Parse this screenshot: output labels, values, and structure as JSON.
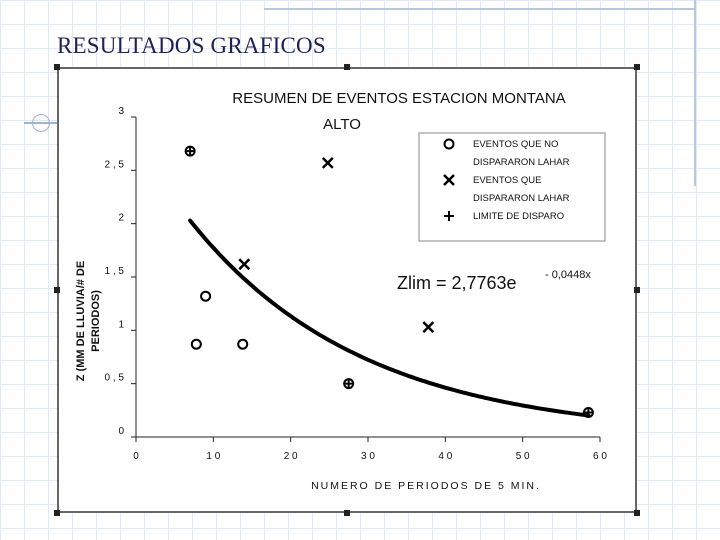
{
  "slide": {
    "title": "RESULTADOS GRAFICOS"
  },
  "chart_data": {
    "type": "scatter",
    "title_line1": "RESUMEN DE EVENTOS ESTACION MONTANA",
    "title_line2": "ALTO",
    "xlabel": "NUMERO DE PERIODOS DE 5 MIN.",
    "ylabel_line1": "Z (MM DE LLUVIA/# DE",
    "ylabel_line2": "PERIODOS)",
    "xlim": [
      0,
      60
    ],
    "ylim": [
      0,
      3
    ],
    "x_ticks": [
      0,
      10,
      20,
      30,
      40,
      50,
      60
    ],
    "x_tick_labels": [
      "0",
      "1 0",
      "2 0",
      "3 0",
      "4 0",
      "5 0",
      "6 0"
    ],
    "y_ticks": [
      0,
      0.5,
      1,
      1.5,
      2,
      2.5,
      3
    ],
    "y_tick_labels": [
      "0",
      "0 , 5",
      "1",
      "1 , 5",
      "2",
      "2 , 5",
      "3"
    ],
    "legend": {
      "placement": "top-right",
      "items": [
        "EVENTOS QUE NO",
        "DISPARARON LAHAR",
        "EVENTOS QUE",
        "DISPARARON LAHAR",
        "LIMITE DE DISPARO"
      ]
    },
    "series": [
      {
        "name": "EVENTOS QUE NO DISPARARON LAHAR",
        "marker": "circle",
        "points": [
          [
            7.8,
            0.87
          ],
          [
            9,
            1.32
          ],
          [
            13.8,
            0.87
          ],
          [
            7,
            2.68
          ],
          [
            27.5,
            0.5
          ],
          [
            58.5,
            0.23
          ]
        ]
      },
      {
        "name": "EVENTOS QUE DISPARARON LAHAR",
        "marker": "x",
        "points": [
          [
            14,
            1.62
          ],
          [
            24.8,
            2.57
          ],
          [
            37.8,
            1.03
          ]
        ]
      },
      {
        "name": "LIMITE DE DISPARO",
        "marker": "plus",
        "points": [
          [
            7,
            2.68
          ],
          [
            27.5,
            0.5
          ],
          [
            58.5,
            0.23
          ]
        ]
      }
    ],
    "curve": {
      "type": "exponential",
      "a": 2.7763,
      "b": -0.0448,
      "x_range": [
        7,
        58.5
      ],
      "equation_prefix": "Zlim = 2,7763e",
      "equation_exponent": "- 0,0448x"
    },
    "grid": false
  }
}
